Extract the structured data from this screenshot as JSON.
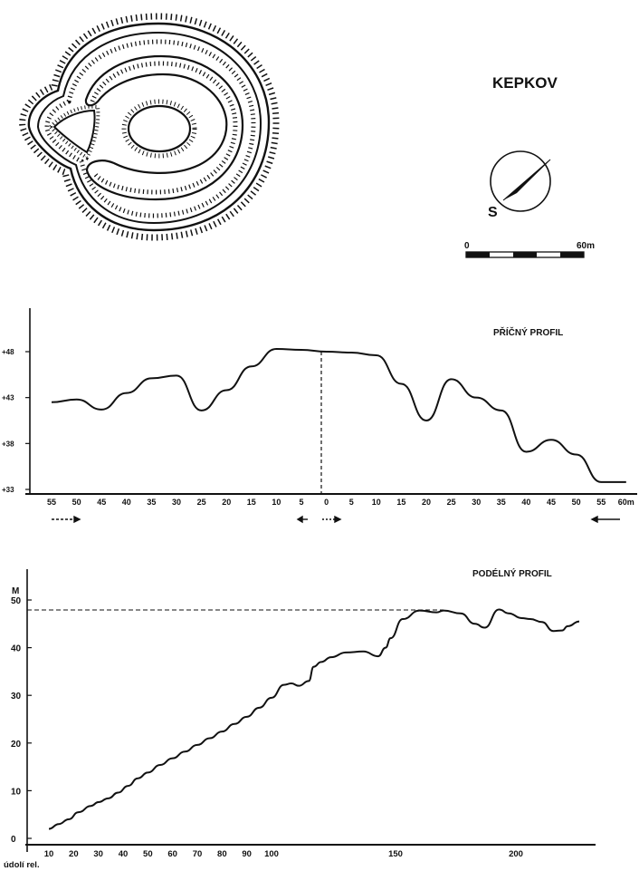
{
  "site": {
    "title": "KEPKOV",
    "compass_label": "S"
  },
  "scale_bar": {
    "start_label": "0",
    "end_label": "60m"
  },
  "cross_profile": {
    "title": "PŘÍČNÝ PROFIL",
    "y_ticks": [
      {
        "label": "+48",
        "value": 48
      },
      {
        "label": "+43",
        "value": 43
      },
      {
        "label": "+38",
        "value": 38
      },
      {
        "label": "+33",
        "value": 33
      }
    ],
    "x_ticks": [
      "55",
      "50",
      "45",
      "40",
      "35",
      "30",
      "25",
      "20",
      "15",
      "10",
      "5",
      "0",
      "5",
      "10",
      "15",
      "20",
      "25",
      "30",
      "35",
      "40",
      "45",
      "50",
      "55",
      "60m"
    ],
    "ylim": [
      33,
      48
    ]
  },
  "long_profile": {
    "title": "PODÉLNÝ PROFIL",
    "unit_label": "M",
    "y_ticks": [
      "50",
      "40",
      "30",
      "20",
      "10",
      "0"
    ],
    "x_ticks": [
      "10",
      "20",
      "30",
      "40",
      "50",
      "60",
      "70",
      "80",
      "90",
      "100",
      "150",
      "200"
    ],
    "x_origin_label": "údolí rel.",
    "ylim": [
      0,
      50
    ]
  },
  "chart_data": [
    {
      "type": "line",
      "title": "PŘÍČNÝ PROFIL",
      "xlabel": "",
      "ylabel": "",
      "x_categories": [
        "55",
        "50",
        "45",
        "40",
        "35",
        "30",
        "25",
        "20",
        "15",
        "10",
        "5",
        "0",
        "5",
        "10",
        "15",
        "20",
        "25",
        "30",
        "35",
        "40",
        "45",
        "50",
        "55",
        "60m"
      ],
      "series": [
        {
          "x_index": [
            0,
            1,
            2,
            3,
            4,
            5,
            6,
            7,
            8,
            9,
            10,
            11,
            12,
            13,
            14,
            15,
            16,
            17,
            18,
            19,
            20,
            21,
            22,
            23
          ],
          "values": [
            42.5,
            42.8,
            41.7,
            43.5,
            45.1,
            45.4,
            41.6,
            43.8,
            46.4,
            48.3,
            48.2,
            48.0,
            47.9,
            47.6,
            44.5,
            40.5,
            45.0,
            43.0,
            41.6,
            37.1,
            38.4,
            36.8,
            33.8,
            33.8
          ]
        }
      ],
      "ylim": [
        33,
        48
      ],
      "grid": false
    },
    {
      "type": "line",
      "title": "PODÉLNÝ PROFIL",
      "xlabel": "údolí rel.",
      "ylabel": "M",
      "x": [
        10,
        14,
        18,
        22,
        27,
        30,
        34,
        38,
        42,
        46,
        50,
        55,
        60,
        65,
        70,
        75,
        80,
        85,
        90,
        95,
        100,
        105,
        108,
        111,
        115,
        117,
        120,
        124,
        130,
        137,
        143,
        146,
        148,
        153,
        160,
        167,
        170,
        177,
        183,
        187,
        193,
        197,
        202,
        205,
        209,
        213,
        216,
        218,
        222
      ],
      "series": [
        {
          "values": [
            2,
            3,
            4,
            5.5,
            6.8,
            7.6,
            8.4,
            9.6,
            11,
            12.6,
            13.8,
            15.4,
            16.8,
            18.2,
            19.6,
            21,
            22.4,
            24,
            25.5,
            27.4,
            29.5,
            32.2,
            32.5,
            32,
            33,
            36,
            37,
            38,
            39,
            39.2,
            38.2,
            40,
            42,
            46,
            47.8,
            47.4,
            47.8,
            47.2,
            45,
            44.2,
            48,
            47.2,
            46.2,
            46,
            45.4,
            43.5,
            43.6,
            44.5,
            45.5
          ]
        }
      ],
      "ylim": [
        0,
        50
      ],
      "reference_line": {
        "y": 48,
        "style": "dashed"
      },
      "grid": false
    }
  ]
}
